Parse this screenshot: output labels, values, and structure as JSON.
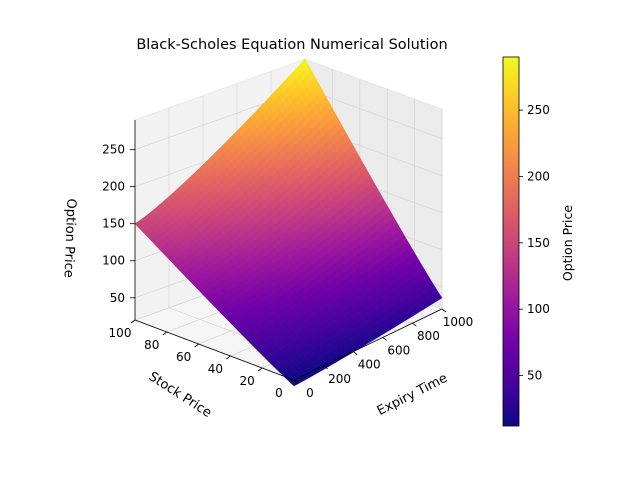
{
  "chart_data": {
    "type": "surface",
    "title": "Black-Scholes Equation Numerical Solution",
    "xlabel": "Expiry Time",
    "ylabel": "Stock Price",
    "zlabel": "Option Price",
    "colorbar_label": "Option Price",
    "colormap": "plasma",
    "x_ticks": [
      0,
      200,
      400,
      600,
      800,
      1000
    ],
    "y_ticks": [
      0,
      20,
      40,
      60,
      80,
      100
    ],
    "z_ticks": [
      50,
      100,
      150,
      200,
      250
    ],
    "colorbar_ticks": [
      50,
      100,
      150,
      200,
      250
    ],
    "xlim": [
      0,
      1000
    ],
    "ylim": [
      0,
      100
    ],
    "zlim": [
      20,
      290
    ],
    "colorbar_range": [
      12,
      290
    ],
    "corner_values": [
      {
        "expiry_time": 0,
        "stock_price": 0,
        "option_price": 12
      },
      {
        "expiry_time": 1000,
        "stock_price": 0,
        "option_price": 35
      },
      {
        "expiry_time": 0,
        "stock_price": 100,
        "option_price": 150
      },
      {
        "expiry_time": 1000,
        "stock_price": 100,
        "option_price": 290
      }
    ],
    "grid": true
  }
}
